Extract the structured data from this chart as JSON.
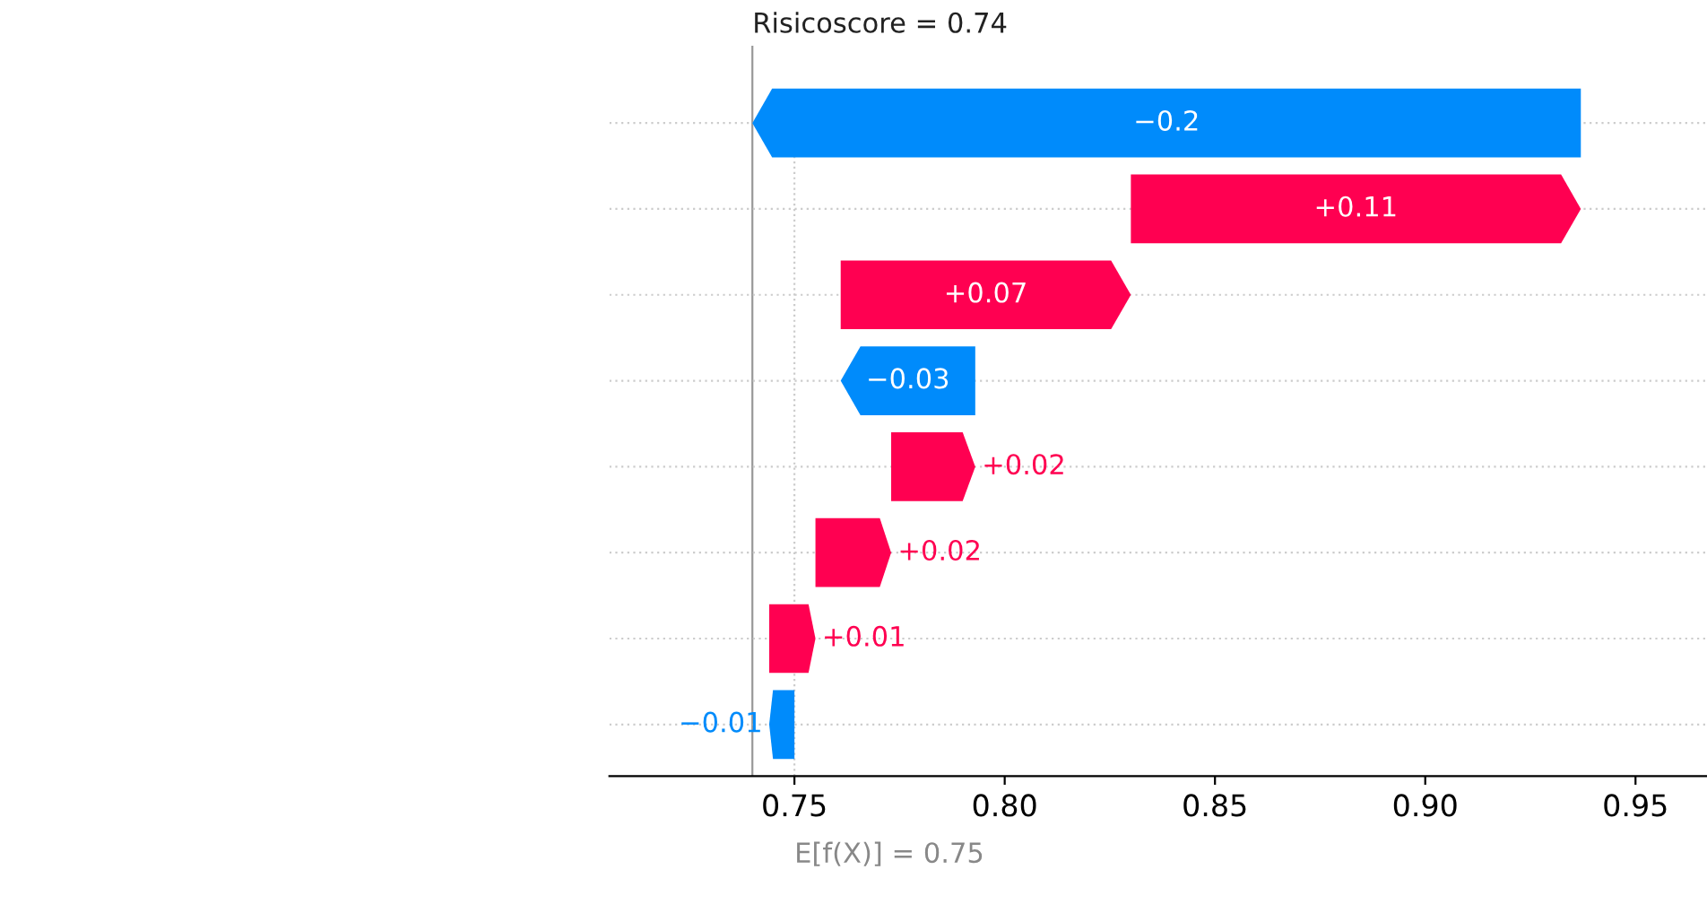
{
  "chart_data": {
    "type": "bar",
    "orientation": "horizontal",
    "categories": [
      null,
      null,
      null,
      null,
      null,
      null,
      null,
      null
    ],
    "values": [
      -0.197,
      0.107,
      0.069,
      -0.032,
      0.02,
      0.018,
      0.011,
      -0.006
    ],
    "base": [
      0.937,
      0.83,
      0.761,
      0.793,
      0.773,
      0.755,
      0.744,
      0.75
    ],
    "colors": [
      "#008bfb",
      "#ff0051",
      "#ff0051",
      "#008bfb",
      "#ff0051",
      "#ff0051",
      "#ff0051",
      "#008bfb"
    ],
    "value_labels": [
      "−0.2",
      "+0.11",
      "+0.07",
      "−0.03",
      "+0.02",
      "+0.02",
      "+0.01",
      "−0.01"
    ],
    "xlim": [
      0.706,
      0.967
    ],
    "xticks": [
      0.75,
      {
        "value": 0.8,
        "label": "0.80"
      },
      0.85,
      {
        "value": 0.9,
        "label": "0.90"
      },
      0.95
    ],
    "ref_lines": [
      {
        "axis": "x",
        "value": 0.74,
        "label": "Risicoscore = 0.74",
        "color": "#999999"
      },
      {
        "axis": "x",
        "value": 0.75,
        "label": "E[f(X)] = 0.75",
        "color": "#cccccc",
        "line_style": "dotted"
      }
    ],
    "grid": "y"
  }
}
